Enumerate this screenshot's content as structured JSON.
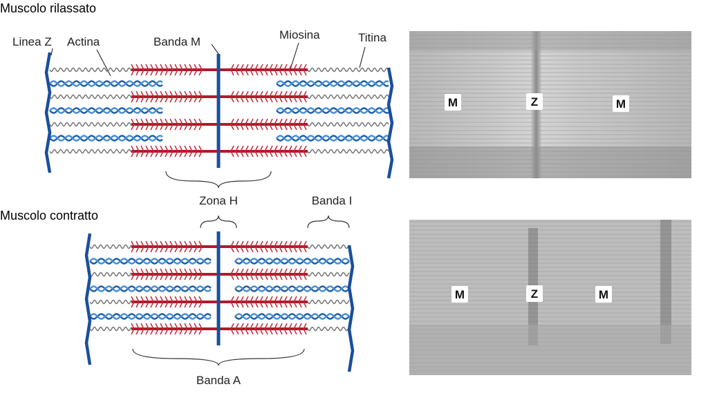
{
  "relaxed": {
    "title": "Muscolo rilassato",
    "labels": {
      "z_line": "Linea Z",
      "actin": "Actina",
      "m_band": "Banda M",
      "myosin": "Miosina",
      "titin": "Titina"
    },
    "micrograph": [
      "M",
      "Z",
      "M"
    ]
  },
  "middle_labels": {
    "h_zone": "Zona H",
    "i_band": "Banda I"
  },
  "contracted": {
    "title": "Muscolo contratto",
    "labels": {
      "a_band": "Banda A"
    },
    "micrograph": [
      "M",
      "Z",
      "M"
    ]
  }
}
